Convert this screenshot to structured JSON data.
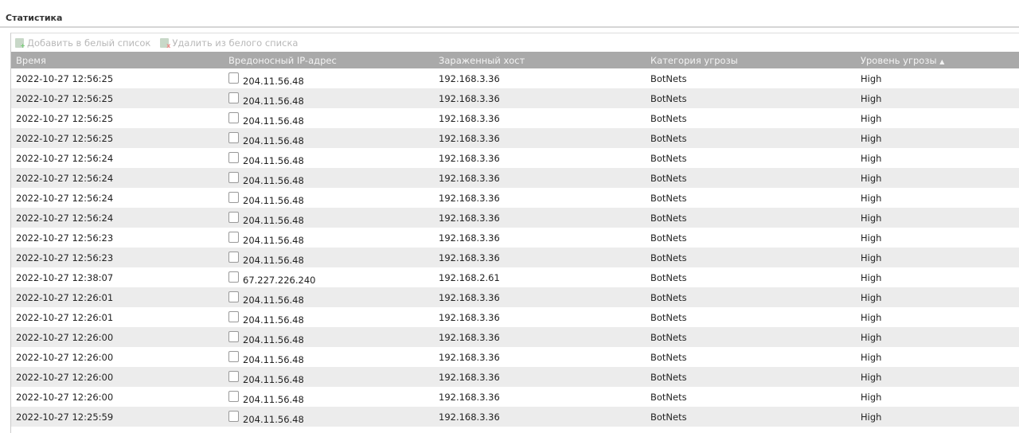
{
  "title": "Статистика",
  "toolbar": {
    "add": "Добавить в белый список",
    "remove": "Удалить из белого списка",
    "add_icon": "add-list-icon",
    "remove_icon": "remove-list-icon"
  },
  "columns": [
    "Время",
    "Вредоносный IP-адрес",
    "Зараженный хост",
    "Категория угрозы",
    "Уровень угрозы"
  ],
  "sort": {
    "column": "Уровень угрозы",
    "direction": "ascending",
    "indicator": "▲"
  },
  "rows": [
    [
      "2022-10-27 12:56:25",
      "204.11.56.48",
      "192.168.3.36",
      "BotNets",
      "High"
    ],
    [
      "2022-10-27 12:56:25",
      "204.11.56.48",
      "192.168.3.36",
      "BotNets",
      "High"
    ],
    [
      "2022-10-27 12:56:25",
      "204.11.56.48",
      "192.168.3.36",
      "BotNets",
      "High"
    ],
    [
      "2022-10-27 12:56:25",
      "204.11.56.48",
      "192.168.3.36",
      "BotNets",
      "High"
    ],
    [
      "2022-10-27 12:56:24",
      "204.11.56.48",
      "192.168.3.36",
      "BotNets",
      "High"
    ],
    [
      "2022-10-27 12:56:24",
      "204.11.56.48",
      "192.168.3.36",
      "BotNets",
      "High"
    ],
    [
      "2022-10-27 12:56:24",
      "204.11.56.48",
      "192.168.3.36",
      "BotNets",
      "High"
    ],
    [
      "2022-10-27 12:56:24",
      "204.11.56.48",
      "192.168.3.36",
      "BotNets",
      "High"
    ],
    [
      "2022-10-27 12:56:23",
      "204.11.56.48",
      "192.168.3.36",
      "BotNets",
      "High"
    ],
    [
      "2022-10-27 12:56:23",
      "204.11.56.48",
      "192.168.3.36",
      "BotNets",
      "High"
    ],
    [
      "2022-10-27 12:38:07",
      "67.227.226.240",
      "192.168.2.61",
      "BotNets",
      "High"
    ],
    [
      "2022-10-27 12:26:01",
      "204.11.56.48",
      "192.168.3.36",
      "BotNets",
      "High"
    ],
    [
      "2022-10-27 12:26:01",
      "204.11.56.48",
      "192.168.3.36",
      "BotNets",
      "High"
    ],
    [
      "2022-10-27 12:26:00",
      "204.11.56.48",
      "192.168.3.36",
      "BotNets",
      "High"
    ],
    [
      "2022-10-27 12:26:00",
      "204.11.56.48",
      "192.168.3.36",
      "BotNets",
      "High"
    ],
    [
      "2022-10-27 12:26:00",
      "204.11.56.48",
      "192.168.3.36",
      "BotNets",
      "High"
    ],
    [
      "2022-10-27 12:26:00",
      "204.11.56.48",
      "192.168.3.36",
      "BotNets",
      "High"
    ],
    [
      "2022-10-27 12:25:59",
      "204.11.56.48",
      "192.168.3.36",
      "BotNets",
      "High"
    ]
  ]
}
